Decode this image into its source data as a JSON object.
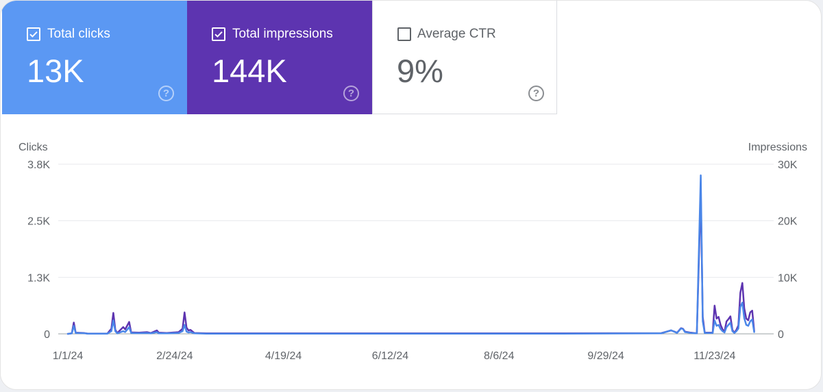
{
  "metrics": {
    "clicks": {
      "label": "Total clicks",
      "value": "13K",
      "checked": true,
      "color": "#5b98f3",
      "help_icon": "help-circle-icon"
    },
    "impressions": {
      "label": "Total impressions",
      "value": "144K",
      "checked": true,
      "color": "#5d34b0",
      "help_icon": "help-circle-icon"
    },
    "ctr": {
      "label": "Average CTR",
      "value": "9%",
      "checked": false,
      "color": "#ffffff",
      "help_icon": "help-circle-icon"
    }
  },
  "chart_data": {
    "type": "line",
    "left_axis": {
      "title": "Clicks",
      "ticks": [
        "0",
        "1.3K",
        "2.5K",
        "3.8K"
      ],
      "range": [
        0,
        3800
      ]
    },
    "right_axis": {
      "title": "Impressions",
      "ticks": [
        "0",
        "10K",
        "20K",
        "30K"
      ],
      "range": [
        0,
        30000
      ]
    },
    "x_ticks": [
      "1/1/24",
      "2/24/24",
      "4/19/24",
      "6/12/24",
      "8/6/24",
      "9/29/24",
      "11/23/24"
    ],
    "x_tick_days": [
      0,
      54,
      109,
      163,
      218,
      272,
      327
    ],
    "grid": true,
    "legend": "none",
    "series": [
      {
        "name": "Impressions",
        "axis": "right",
        "color": "#5d34b0",
        "points": [
          [
            0,
            0
          ],
          [
            2,
            100
          ],
          [
            3,
            2000
          ],
          [
            4,
            200
          ],
          [
            8,
            150
          ],
          [
            10,
            50
          ],
          [
            20,
            50
          ],
          [
            22,
            900
          ],
          [
            23,
            3700
          ],
          [
            24,
            700
          ],
          [
            25,
            150
          ],
          [
            28,
            1200
          ],
          [
            29,
            800
          ],
          [
            31,
            2100
          ],
          [
            32,
            250
          ],
          [
            36,
            200
          ],
          [
            40,
            300
          ],
          [
            42,
            150
          ],
          [
            45,
            600
          ],
          [
            46,
            200
          ],
          [
            50,
            150
          ],
          [
            56,
            300
          ],
          [
            58,
            900
          ],
          [
            59,
            3800
          ],
          [
            60,
            1100
          ],
          [
            61,
            600
          ],
          [
            62,
            700
          ],
          [
            64,
            150
          ],
          [
            70,
            100
          ],
          [
            80,
            100
          ],
          [
            100,
            80
          ],
          [
            150,
            80
          ],
          [
            200,
            80
          ],
          [
            250,
            80
          ],
          [
            300,
            120
          ],
          [
            305,
            600
          ],
          [
            307,
            350
          ],
          [
            308,
            200
          ],
          [
            310,
            1000
          ],
          [
            311,
            900
          ],
          [
            312,
            400
          ],
          [
            315,
            200
          ],
          [
            318,
            100
          ],
          [
            320,
            25000
          ],
          [
            321,
            3000
          ],
          [
            322,
            200
          ],
          [
            326,
            200
          ],
          [
            327,
            5000
          ],
          [
            328,
            2700
          ],
          [
            329,
            3000
          ],
          [
            330,
            1600
          ],
          [
            331,
            800
          ],
          [
            332,
            400
          ],
          [
            333,
            2200
          ],
          [
            334,
            2600
          ],
          [
            335,
            3100
          ],
          [
            336,
            700
          ],
          [
            337,
            200
          ],
          [
            338,
            700
          ],
          [
            339,
            1500
          ],
          [
            340,
            7300
          ],
          [
            341,
            9000
          ],
          [
            342,
            4500
          ],
          [
            343,
            2700
          ],
          [
            344,
            2400
          ],
          [
            345,
            3800
          ],
          [
            346,
            4100
          ],
          [
            347,
            500
          ]
        ]
      },
      {
        "name": "Clicks",
        "axis": "left",
        "color": "#4a86e8",
        "points": [
          [
            0,
            0
          ],
          [
            2,
            10
          ],
          [
            3,
            180
          ],
          [
            4,
            20
          ],
          [
            8,
            15
          ],
          [
            10,
            5
          ],
          [
            20,
            5
          ],
          [
            22,
            60
          ],
          [
            23,
            300
          ],
          [
            24,
            60
          ],
          [
            25,
            10
          ],
          [
            28,
            60
          ],
          [
            29,
            40
          ],
          [
            31,
            150
          ],
          [
            32,
            20
          ],
          [
            36,
            15
          ],
          [
            40,
            20
          ],
          [
            42,
            10
          ],
          [
            45,
            40
          ],
          [
            46,
            10
          ],
          [
            50,
            10
          ],
          [
            56,
            20
          ],
          [
            58,
            60
          ],
          [
            59,
            200
          ],
          [
            60,
            50
          ],
          [
            61,
            30
          ],
          [
            62,
            40
          ],
          [
            64,
            10
          ],
          [
            70,
            5
          ],
          [
            80,
            5
          ],
          [
            100,
            5
          ],
          [
            150,
            5
          ],
          [
            200,
            5
          ],
          [
            250,
            5
          ],
          [
            300,
            10
          ],
          [
            305,
            80
          ],
          [
            307,
            40
          ],
          [
            308,
            20
          ],
          [
            310,
            120
          ],
          [
            311,
            110
          ],
          [
            312,
            40
          ],
          [
            315,
            20
          ],
          [
            318,
            10
          ],
          [
            320,
            3550
          ],
          [
            321,
            280
          ],
          [
            322,
            20
          ],
          [
            326,
            20
          ],
          [
            327,
            300
          ],
          [
            328,
            180
          ],
          [
            329,
            200
          ],
          [
            330,
            110
          ],
          [
            331,
            60
          ],
          [
            332,
            30
          ],
          [
            333,
            150
          ],
          [
            334,
            200
          ],
          [
            335,
            250
          ],
          [
            336,
            60
          ],
          [
            337,
            20
          ],
          [
            338,
            60
          ],
          [
            339,
            120
          ],
          [
            340,
            600
          ],
          [
            341,
            700
          ],
          [
            342,
            350
          ],
          [
            343,
            200
          ],
          [
            344,
            180
          ],
          [
            345,
            280
          ],
          [
            346,
            320
          ],
          [
            347,
            40
          ]
        ]
      }
    ]
  }
}
